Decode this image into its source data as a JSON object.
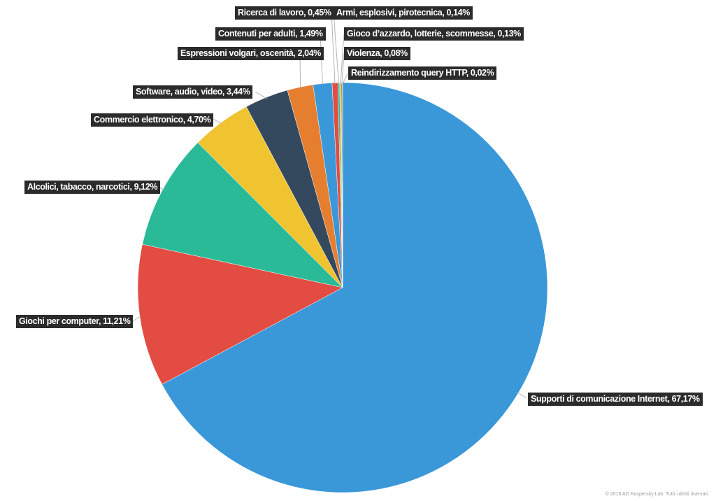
{
  "chart_data": {
    "type": "pie",
    "title": "",
    "start_angle_deg": 0,
    "direction": "clockwise",
    "slices": [
      {
        "label": "Supporti di comunicazione Internet, 67,17%",
        "value": 67.17,
        "color": "#3a98d8"
      },
      {
        "label": "Giochi per computer, 11,21%",
        "value": 11.21,
        "color": "#e24c42"
      },
      {
        "label": "Alcolici, tabacco, narcotici, 9,12%",
        "value": 9.12,
        "color": "#2bba98"
      },
      {
        "label": "Commercio elettronico, 4,70%",
        "value": 4.7,
        "color": "#f0c330"
      },
      {
        "label": "Software, audio, video, 3,44%",
        "value": 3.44,
        "color": "#34495e"
      },
      {
        "label": "Espressioni volgari, oscenità, 2,04%",
        "value": 2.04,
        "color": "#e67e30"
      },
      {
        "label": "Contenuti per adulti, 1,49%",
        "value": 1.49,
        "color": "#3a98d8"
      },
      {
        "label": "Ricerca di lavoro, 0,45%",
        "value": 0.45,
        "color": "#e24c42"
      },
      {
        "label": "Armi, esplosivi, pirotecnica, 0,14%",
        "value": 0.14,
        "color": "#2bba98"
      },
      {
        "label": "Gioco d’azzardo, lotterie, scommesse, 0,13%",
        "value": 0.13,
        "color": "#f0c330"
      },
      {
        "label": "Violenza, 0,08%",
        "value": 0.08,
        "color": "#34495e"
      },
      {
        "label": "Reindirizzamento query HTTP, 0,02%",
        "value": 0.02,
        "color": "#e67e30"
      }
    ]
  },
  "copyright": "© 2016 AO Kaspersky Lab. Tutti i diritti riservati."
}
